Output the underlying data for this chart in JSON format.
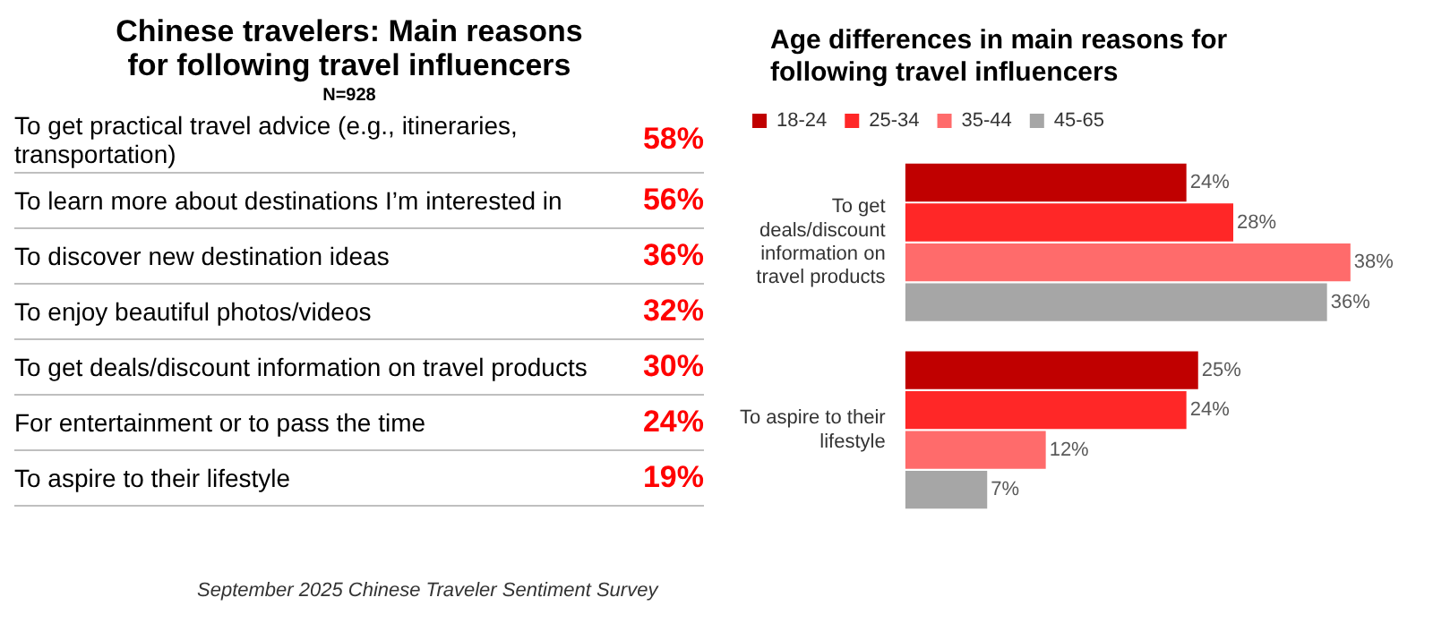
{
  "chart_data": [
    {
      "type": "other",
      "title": "Chinese travelers: Main reasons for following travel influencers",
      "subtitle": "N=928",
      "categories": [
        "To get practical travel advice (e.g., itineraries, transportation)",
        "To learn more about destinations I’m interested in",
        "To discover new destination ideas",
        "To enjoy beautiful photos/videos",
        "To get deals/discount information on travel products",
        "For entertainment or to pass the time",
        "To aspire to their lifestyle"
      ],
      "value_labels": [
        "58%",
        "56%",
        "36%",
        "32%",
        "30%",
        "24%",
        "19%"
      ],
      "color": "#ff0000",
      "annotations": [
        "September 2025 Chinese Traveler Sentiment Survey"
      ]
    },
    {
      "type": "bar",
      "orientation": "horizontal",
      "title": "Age differences in main reasons for following travel influencers",
      "categories": [
        "To get deals/discount information on travel products",
        "To aspire to their lifestyle"
      ],
      "legend": "top",
      "series": [
        {
          "name": "18-24",
          "color": "#c00000",
          "values": [
            24,
            25
          ],
          "value_labels": [
            "24%",
            "25%"
          ]
        },
        {
          "name": "25-34",
          "color": "#ff2727",
          "values": [
            28,
            24
          ],
          "value_labels": [
            "28%",
            "24%"
          ]
        },
        {
          "name": "35-44",
          "color": "#ff6b6b",
          "values": [
            38,
            12
          ],
          "value_labels": [
            "38%",
            "12%"
          ]
        },
        {
          "name": "45-65",
          "color": "#a6a6a6",
          "values": [
            36,
            7
          ],
          "value_labels": [
            "36%",
            "7%"
          ]
        }
      ]
    }
  ]
}
